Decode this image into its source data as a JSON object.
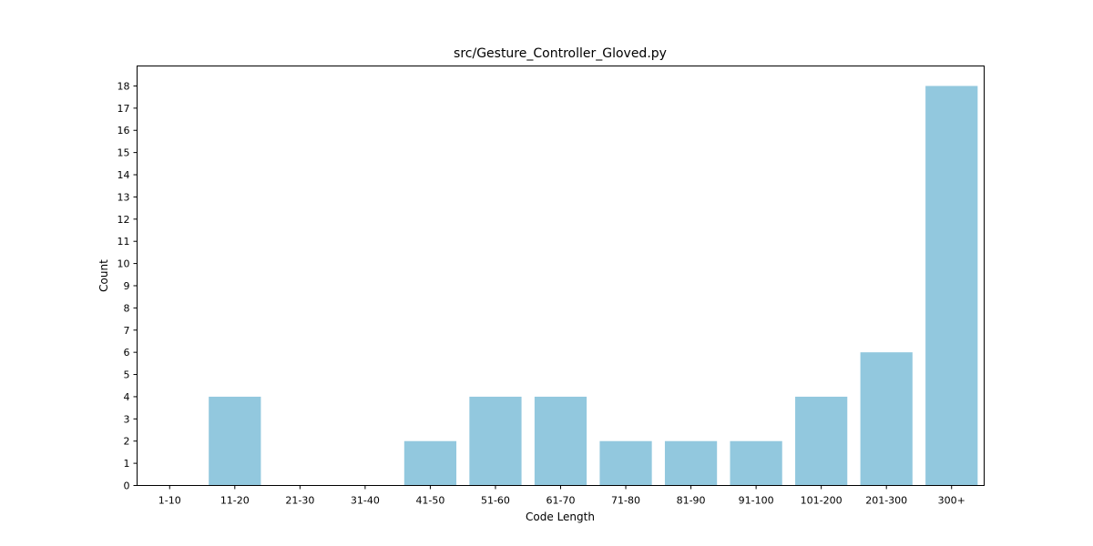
{
  "chart_data": {
    "type": "bar",
    "title": "src/Gesture_Controller_Gloved.py",
    "xlabel": "Code Length",
    "ylabel": "Count",
    "categories": [
      "1-10",
      "11-20",
      "21-30",
      "31-40",
      "41-50",
      "51-60",
      "61-70",
      "71-80",
      "81-90",
      "91-100",
      "101-200",
      "201-300",
      "300+"
    ],
    "values": [
      0,
      4,
      0,
      0,
      2,
      4,
      4,
      2,
      2,
      2,
      4,
      6,
      18
    ],
    "yticks": [
      0,
      1,
      2,
      3,
      4,
      5,
      6,
      7,
      8,
      9,
      10,
      11,
      12,
      13,
      14,
      15,
      16,
      17,
      18
    ],
    "ylim": [
      0,
      18.9
    ],
    "grid": false,
    "bar_color": "#92c8de"
  }
}
